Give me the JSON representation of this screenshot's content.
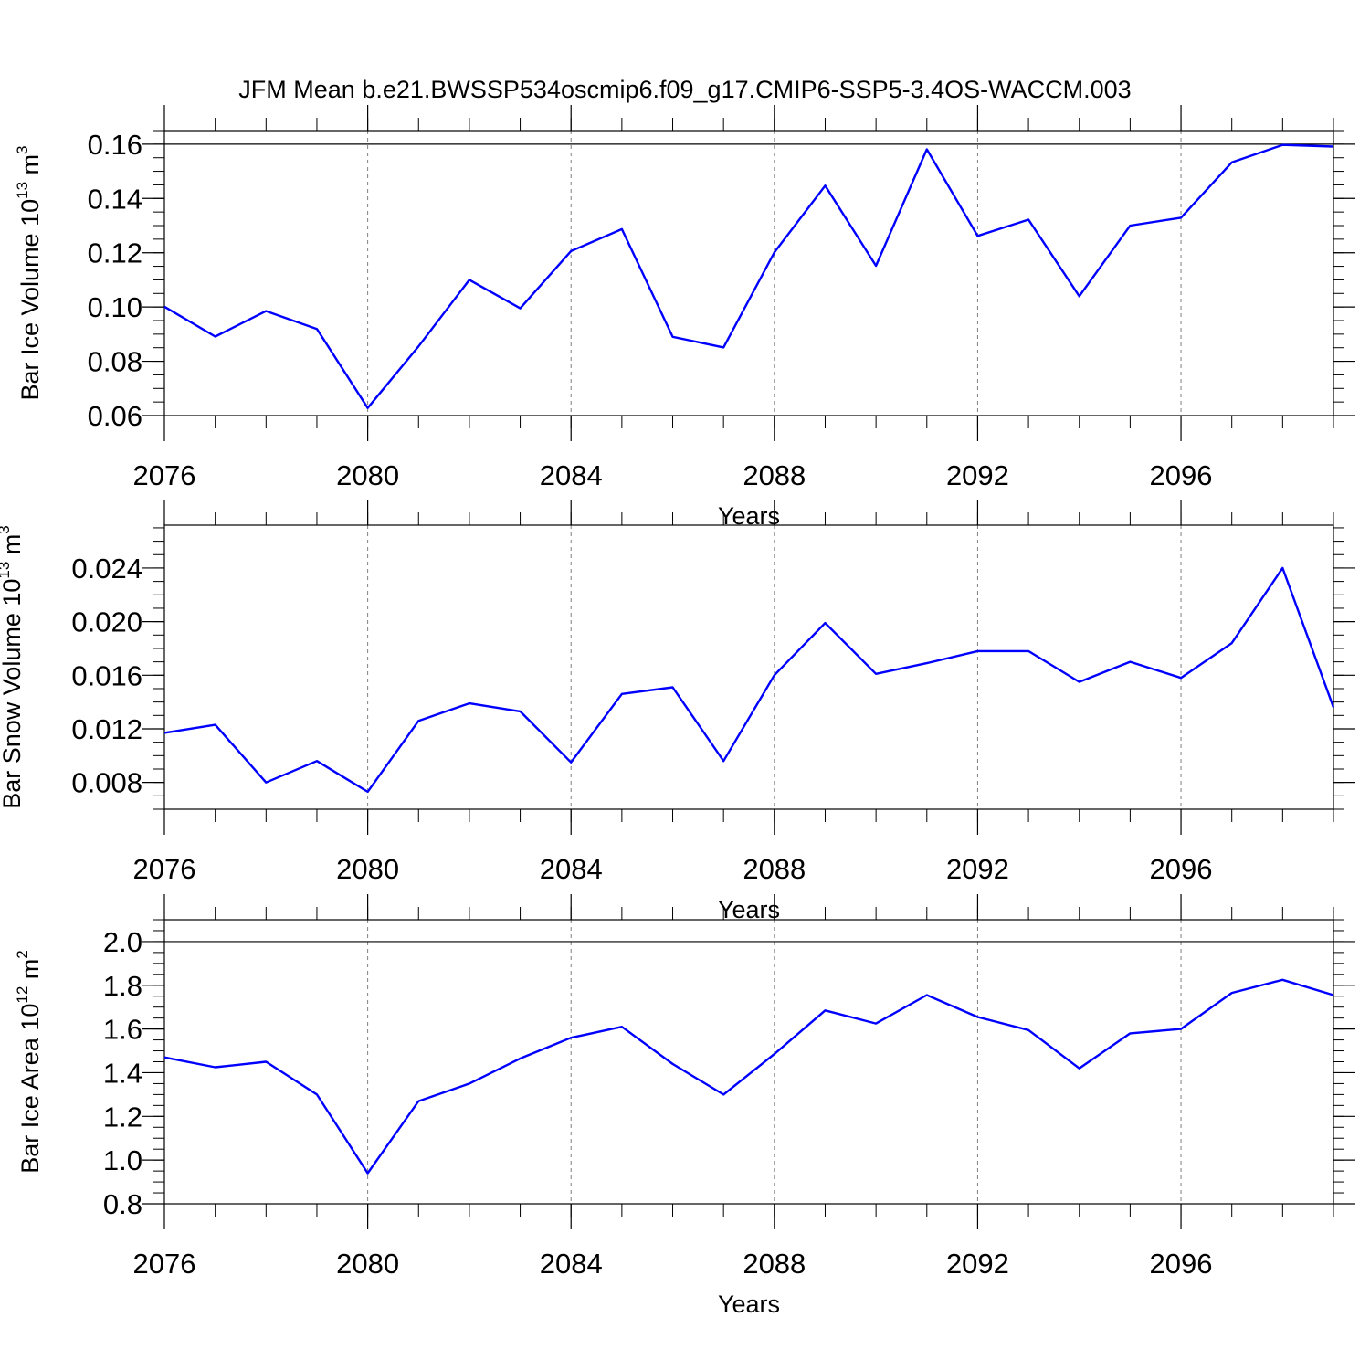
{
  "figure_title": "JFM Mean b.e21.BWSSP534oscmip6.f09_g17.CMIP6-SSP5-3.4OS-WACCM.003",
  "colors": {
    "series": "#0000ff",
    "axis": "#000000",
    "grid": "#808080",
    "background": "#ffffff"
  },
  "chart_data": [
    {
      "type": "line",
      "title": "",
      "ylabel": {
        "main": "Bar Ice Volume 10",
        "sup": "13",
        "tail": " m",
        "sup2": "3"
      },
      "xlabel": "Years",
      "x": [
        2076,
        2077,
        2078,
        2079,
        2080,
        2081,
        2082,
        2083,
        2084,
        2085,
        2086,
        2087,
        2088,
        2089,
        2090,
        2091,
        2092,
        2093,
        2094,
        2095,
        2096,
        2097,
        2098,
        2099
      ],
      "series": [
        {
          "name": "Bar Ice Volume",
          "values": [
            0.1001,
            0.0891,
            0.0985,
            0.0919,
            0.0628,
            0.0855,
            0.11,
            0.0995,
            0.1206,
            0.1287,
            0.089,
            0.0851,
            0.1201,
            0.1447,
            0.1152,
            0.1581,
            0.1262,
            0.1322,
            0.104,
            0.13,
            0.1329,
            0.1533,
            0.1597,
            0.1591
          ]
        }
      ],
      "xlim": [
        2076,
        2099
      ],
      "ylim": [
        0.06,
        0.165
      ],
      "yticks": [
        0.06,
        0.08,
        0.1,
        0.12,
        0.14,
        0.16
      ],
      "ytick_labels": [
        "0.06",
        "0.08",
        "0.10",
        "0.12",
        "0.14",
        "0.16"
      ],
      "y_minor_step": 0.005,
      "xticks": [
        2076,
        2080,
        2084,
        2088,
        2092,
        2096
      ],
      "xtick_labels": [
        "2076",
        "2080",
        "2084",
        "2088",
        "2092",
        "2096"
      ],
      "ref_line": 0.16,
      "grid": "vertical-dashed"
    },
    {
      "type": "line",
      "title": "",
      "ylabel": {
        "main": "Bar Snow Volume 10",
        "sup": "13",
        "tail": " m",
        "sup2": "3"
      },
      "xlabel": "Years",
      "x": [
        2076,
        2077,
        2078,
        2079,
        2080,
        2081,
        2082,
        2083,
        2084,
        2085,
        2086,
        2087,
        2088,
        2089,
        2090,
        2091,
        2092,
        2093,
        2094,
        2095,
        2096,
        2097,
        2098,
        2099
      ],
      "series": [
        {
          "name": "Bar Snow Volume",
          "values": [
            0.0117,
            0.0123,
            0.008,
            0.0096,
            0.0073,
            0.0126,
            0.0139,
            0.0133,
            0.0095,
            0.0146,
            0.0151,
            0.0096,
            0.016,
            0.0199,
            0.0161,
            0.0169,
            0.0178,
            0.0178,
            0.0155,
            0.017,
            0.0158,
            0.0184,
            0.024,
            0.0136
          ]
        }
      ],
      "xlim": [
        2076,
        2099
      ],
      "ylim": [
        0.006,
        0.0272
      ],
      "yticks": [
        0.008,
        0.012,
        0.016,
        0.02,
        0.024
      ],
      "ytick_labels": [
        "0.008",
        "0.012",
        "0.016",
        "0.020",
        "0.024"
      ],
      "y_minor_step": 0.001,
      "xticks": [
        2076,
        2080,
        2084,
        2088,
        2092,
        2096
      ],
      "xtick_labels": [
        "2076",
        "2080",
        "2084",
        "2088",
        "2092",
        "2096"
      ],
      "ref_line": null,
      "grid": "vertical-dashed"
    },
    {
      "type": "line",
      "title": "",
      "ylabel": {
        "main": "Bar Ice Area 10",
        "sup": "12",
        "tail": " m",
        "sup2": "2"
      },
      "xlabel": "Years",
      "x": [
        2076,
        2077,
        2078,
        2079,
        2080,
        2081,
        2082,
        2083,
        2084,
        2085,
        2086,
        2087,
        2088,
        2089,
        2090,
        2091,
        2092,
        2093,
        2094,
        2095,
        2096,
        2097,
        2098,
        2099
      ],
      "series": [
        {
          "name": "Bar Ice Area",
          "values": [
            1.47,
            1.425,
            1.45,
            1.3,
            0.94,
            1.27,
            1.35,
            1.465,
            1.56,
            1.61,
            1.44,
            1.3,
            1.485,
            1.685,
            1.625,
            1.755,
            1.655,
            1.595,
            1.42,
            1.58,
            1.6,
            1.765,
            1.825,
            1.755
          ]
        }
      ],
      "xlim": [
        2076,
        2099
      ],
      "ylim": [
        0.8,
        2.1
      ],
      "yticks": [
        0.8,
        1.0,
        1.2,
        1.4,
        1.6,
        1.8,
        2.0
      ],
      "ytick_labels": [
        "0.8",
        "1.0",
        "1.2",
        "1.4",
        "1.6",
        "1.8",
        "2.0"
      ],
      "y_minor_step": 0.05,
      "xticks": [
        2076,
        2080,
        2084,
        2088,
        2092,
        2096
      ],
      "xtick_labels": [
        "2076",
        "2080",
        "2084",
        "2088",
        "2092",
        "2096"
      ],
      "ref_line": 2.0,
      "grid": "vertical-dashed"
    }
  ]
}
